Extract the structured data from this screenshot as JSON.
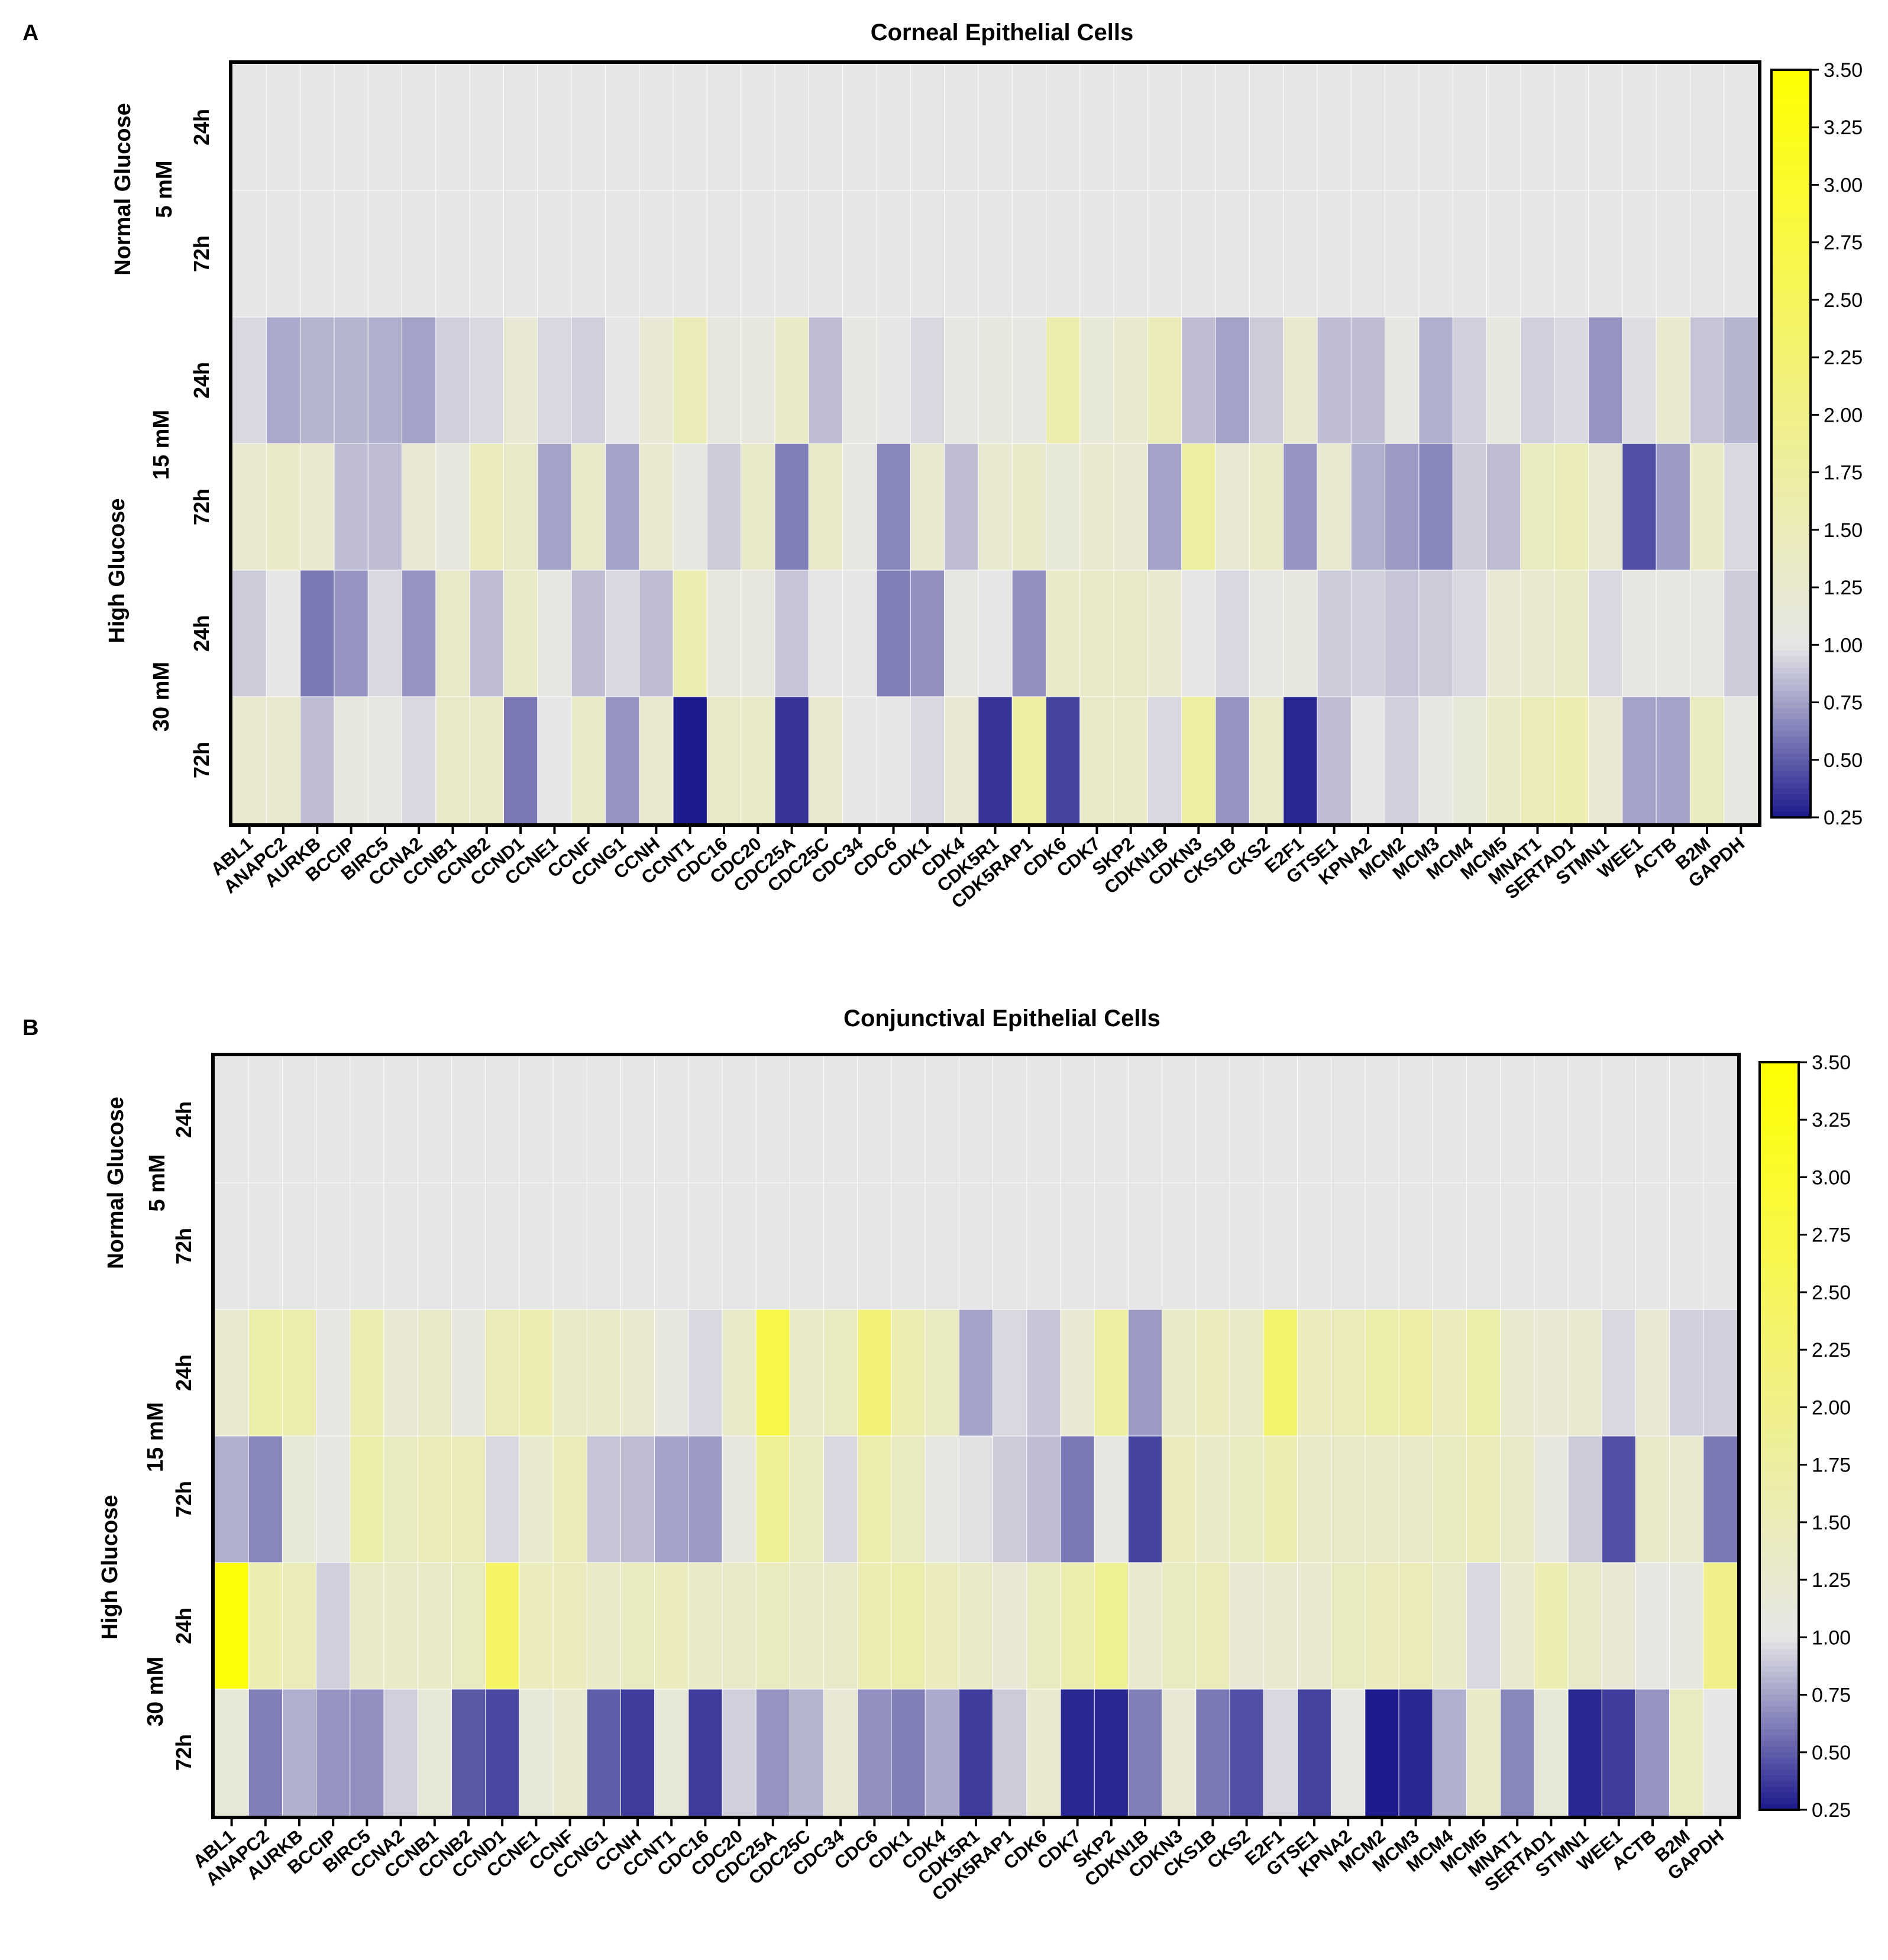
{
  "genes": [
    "ABL1",
    "ANAPC2",
    "AURKB",
    "BCCIP",
    "BIRC5",
    "CCNA2",
    "CCNB1",
    "CCNB2",
    "CCND1",
    "CCNE1",
    "CCNF",
    "CCNG1",
    "CCNH",
    "CCNT1",
    "CDC16",
    "CDC20",
    "CDC25A",
    "CDC25C",
    "CDC34",
    "CDC6",
    "CDK1",
    "CDK4",
    "CDK5R1",
    "CDK5RAP1",
    "CDK6",
    "CDK7",
    "SKP2",
    "CDKN1B",
    "CDKN3",
    "CKS1B",
    "CKS2",
    "E2F1",
    "GTSE1",
    "KPNA2",
    "MCM2",
    "MCM3",
    "MCM4",
    "MCM5",
    "MNAT1",
    "SERTAD1",
    "STMN1",
    "WEE1",
    "ACTB",
    "B2M",
    "GAPDH"
  ],
  "row_labels": [
    "24h",
    "72h",
    "24h",
    "72h",
    "24h",
    "72h"
  ],
  "group_labels": {
    "normal": "Normal Glucose",
    "normal_conc": "5 mM",
    "high": "High Glucose",
    "high15": "15 mM",
    "high30": "30 mM"
  },
  "colorbar_ticks": [
    "3.50",
    "3.25",
    "3.00",
    "2.75",
    "2.50",
    "2.25",
    "2.00",
    "1.75",
    "1.50",
    "1.25",
    "1.00",
    "0.75",
    "0.50",
    "0.25"
  ],
  "colors": {
    "low": "#1c1a8c",
    "mid": "#e6e6e6",
    "high": "#ffff00"
  },
  "chart_data": [
    {
      "type": "heatmap",
      "panel": "A",
      "title": "Corneal Epithelial Cells",
      "color_range": [
        0.25,
        3.5
      ],
      "rows": [
        [
          1,
          1,
          1,
          1,
          1,
          1,
          1,
          1,
          1,
          1,
          1,
          1,
          1,
          1,
          1,
          1,
          1,
          1,
          1,
          1,
          1,
          1,
          1,
          1,
          1,
          1,
          1,
          1,
          1,
          1,
          1,
          1,
          1,
          1,
          1,
          1,
          1,
          1,
          1,
          1,
          1,
          1,
          1,
          1,
          1
        ],
        [
          1,
          1,
          1,
          1,
          1,
          1,
          1,
          1,
          1,
          1,
          1,
          1,
          1,
          1,
          1,
          1,
          1,
          1,
          1,
          1,
          1,
          1,
          1,
          1,
          1,
          1,
          1,
          1,
          1,
          1,
          1,
          1,
          1,
          1,
          1,
          1,
          1,
          1,
          1,
          1,
          1,
          1,
          1,
          1,
          1
        ],
        [
          0.95,
          0.78,
          0.82,
          0.82,
          0.8,
          0.75,
          0.92,
          0.95,
          1.2,
          0.95,
          0.92,
          1.0,
          1.2,
          1.5,
          1.1,
          1.1,
          1.35,
          0.85,
          1.05,
          1.02,
          0.95,
          1.05,
          1.1,
          1.05,
          1.6,
          1.15,
          1.25,
          1.5,
          0.85,
          0.75,
          0.9,
          1.25,
          0.85,
          0.85,
          1.05,
          0.8,
          0.92,
          1.1,
          0.92,
          0.95,
          0.7,
          0.97,
          1.25,
          0.88,
          0.82
        ],
        [
          1.25,
          1.35,
          1.25,
          0.85,
          0.85,
          1.2,
          1.1,
          1.45,
          1.3,
          0.75,
          1.3,
          0.75,
          1.25,
          1.05,
          0.9,
          1.3,
          0.62,
          1.3,
          1.05,
          0.65,
          1.25,
          0.85,
          1.25,
          1.3,
          1.15,
          1.25,
          1.2,
          0.75,
          1.75,
          1.2,
          1.3,
          0.7,
          1.25,
          0.8,
          0.72,
          0.65,
          0.9,
          0.85,
          1.4,
          1.5,
          1.2,
          0.45,
          0.72,
          1.35,
          0.95
        ],
        [
          0.9,
          1.0,
          0.6,
          0.7,
          0.95,
          0.7,
          1.3,
          0.85,
          1.3,
          1.05,
          0.85,
          0.95,
          0.85,
          1.55,
          1.1,
          1.1,
          0.88,
          1.0,
          1.0,
          0.62,
          0.68,
          1.05,
          1.0,
          0.68,
          1.35,
          1.3,
          1.3,
          1.25,
          1.0,
          0.95,
          1.05,
          1.1,
          0.9,
          0.92,
          0.88,
          0.9,
          0.95,
          1.2,
          1.25,
          1.3,
          0.95,
          1.05,
          1.05,
          1.05,
          0.9
        ],
        [
          1.25,
          1.25,
          0.85,
          1.1,
          1.05,
          0.95,
          1.3,
          1.3,
          0.6,
          1.0,
          1.35,
          0.7,
          1.25,
          0.25,
          1.3,
          1.3,
          0.35,
          1.25,
          1.0,
          1.0,
          0.95,
          1.2,
          0.35,
          1.75,
          0.4,
          1.3,
          1.3,
          0.95,
          1.75,
          0.7,
          1.3,
          0.3,
          0.85,
          1.0,
          0.92,
          1.05,
          1.15,
          1.35,
          1.5,
          1.55,
          1.2,
          0.75,
          0.75,
          1.4,
          1.05
        ]
      ]
    },
    {
      "type": "heatmap",
      "panel": "B",
      "title": "Conjunctival Epithelial Cells",
      "color_range": [
        0.25,
        3.5
      ],
      "rows": [
        [
          1,
          1,
          1,
          1,
          1,
          1,
          1,
          1,
          1,
          1,
          1,
          1,
          1,
          1,
          1,
          1,
          1,
          1,
          1,
          1,
          1,
          1,
          1,
          1,
          1,
          1,
          1,
          1,
          1,
          1,
          1,
          1,
          1,
          1,
          1,
          1,
          1,
          1,
          1,
          1,
          1,
          1,
          1,
          1,
          1
        ],
        [
          1,
          1,
          1,
          1,
          1,
          1,
          1,
          1,
          1,
          1,
          1,
          1,
          1,
          1,
          1,
          1,
          1,
          1,
          1,
          1,
          1,
          1,
          1,
          1,
          1,
          1,
          1,
          1,
          1,
          1,
          1,
          1,
          1,
          1,
          1,
          1,
          1,
          1,
          1,
          1,
          1,
          1,
          1,
          1,
          1
        ],
        [
          1.25,
          1.65,
          1.6,
          1.05,
          1.55,
          1.2,
          1.3,
          1.1,
          1.5,
          1.55,
          1.35,
          1.3,
          1.25,
          1.1,
          0.95,
          1.3,
          2.7,
          1.35,
          1.4,
          2.2,
          1.55,
          1.4,
          0.75,
          0.95,
          0.88,
          1.2,
          1.75,
          0.72,
          1.35,
          1.45,
          1.35,
          2.3,
          1.45,
          1.5,
          1.65,
          1.7,
          1.45,
          1.65,
          1.25,
          1.2,
          1.25,
          0.95,
          1.2,
          0.92,
          0.92
        ],
        [
          0.8,
          0.65,
          1.15,
          1.05,
          1.65,
          1.4,
          1.5,
          1.5,
          0.95,
          1.25,
          1.5,
          0.88,
          0.85,
          0.75,
          0.72,
          1.1,
          1.85,
          1.4,
          0.95,
          1.6,
          1.4,
          1.05,
          0.98,
          0.9,
          0.85,
          0.6,
          1.05,
          0.4,
          1.45,
          1.35,
          1.4,
          1.55,
          1.3,
          1.3,
          1.3,
          1.3,
          1.4,
          1.5,
          1.3,
          1.1,
          0.9,
          0.45,
          1.3,
          1.25,
          0.6
        ]
      ],
      "rows_tail": [
        [
          3.4,
          1.55,
          1.5,
          0.92,
          1.35,
          1.35,
          1.35,
          1.4,
          2.4,
          1.45,
          1.45,
          1.35,
          1.4,
          1.45,
          1.35,
          1.3,
          1.4,
          1.35,
          1.3,
          1.55,
          1.6,
          1.45,
          1.35,
          1.2,
          1.4,
          1.6,
          1.9,
          1.25,
          1.4,
          1.5,
          1.2,
          1.25,
          1.25,
          1.4,
          1.45,
          1.5,
          1.35,
          0.95,
          1.25,
          1.55,
          1.3,
          1.2,
          1.05,
          1.1,
          2.0
        ],
        [
          1.15,
          0.62,
          0.8,
          0.7,
          0.68,
          0.92,
          1.15,
          0.48,
          0.42,
          1.15,
          1.25,
          0.5,
          0.38,
          1.15,
          0.38,
          0.92,
          0.7,
          0.82,
          1.2,
          0.68,
          0.62,
          0.78,
          0.38,
          0.9,
          1.25,
          0.3,
          0.3,
          0.62,
          1.2,
          0.6,
          0.45,
          0.95,
          0.4,
          1.05,
          0.25,
          0.3,
          0.8,
          1.35,
          0.65,
          1.15,
          0.3,
          0.38,
          0.7,
          1.4,
          1.0
        ]
      ]
    }
  ],
  "panel_letters": [
    "A",
    "B"
  ]
}
